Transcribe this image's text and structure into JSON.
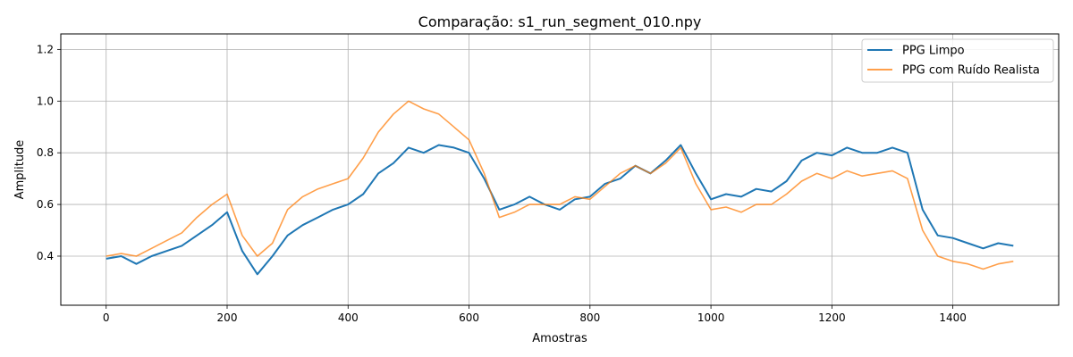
{
  "chart_data": {
    "type": "line",
    "title": "Comparação: s1_run_segment_010.npy",
    "xlabel": "Amostras",
    "ylabel": "Amplitude",
    "xlim": [
      -75,
      1575
    ],
    "ylim": [
      0.21,
      1.26
    ],
    "xticks": [
      0,
      200,
      400,
      600,
      800,
      1000,
      1200,
      1400
    ],
    "yticks": [
      0.4,
      0.6,
      0.8,
      1.0,
      1.2
    ],
    "xtick_labels": [
      "0",
      "200",
      "400",
      "600",
      "800",
      "1000",
      "1200",
      "1400"
    ],
    "ytick_labels": [
      "0.4",
      "0.6",
      "0.8",
      "1.0",
      "1.2"
    ],
    "grid": true,
    "legend_position": "top-right",
    "series": [
      {
        "name": "PPG Limpo",
        "color": "#1f77b4",
        "x": [
          0,
          25,
          50,
          75,
          100,
          125,
          150,
          175,
          200,
          225,
          250,
          275,
          300,
          325,
          350,
          375,
          400,
          425,
          450,
          475,
          500,
          525,
          550,
          575,
          600,
          625,
          650,
          675,
          700,
          725,
          750,
          775,
          800,
          825,
          850,
          875,
          900,
          925,
          950,
          975,
          1000,
          1025,
          1050,
          1075,
          1100,
          1125,
          1150,
          1175,
          1200,
          1225,
          1250,
          1275,
          1300,
          1325,
          1350,
          1375,
          1400,
          1425,
          1450,
          1475,
          1500
        ],
        "y": [
          0.39,
          0.4,
          0.37,
          0.4,
          0.42,
          0.44,
          0.48,
          0.52,
          0.57,
          0.42,
          0.33,
          0.4,
          0.48,
          0.52,
          0.55,
          0.58,
          0.6,
          0.64,
          0.72,
          0.76,
          0.82,
          0.8,
          0.83,
          0.82,
          0.8,
          0.7,
          0.58,
          0.6,
          0.63,
          0.6,
          0.58,
          0.62,
          0.63,
          0.68,
          0.7,
          0.75,
          0.72,
          0.77,
          0.83,
          0.72,
          0.62,
          0.64,
          0.63,
          0.66,
          0.65,
          0.69,
          0.77,
          0.8,
          0.79,
          0.82,
          0.8,
          0.8,
          0.82,
          0.8,
          0.58,
          0.48,
          0.47,
          0.45,
          0.43,
          0.45,
          0.44
        ]
      },
      {
        "name": "PPG com Ruído Realista",
        "color": "#ff7f0e",
        "x": [
          0,
          25,
          50,
          75,
          100,
          125,
          150,
          175,
          200,
          225,
          250,
          275,
          300,
          325,
          350,
          375,
          400,
          425,
          450,
          475,
          500,
          525,
          550,
          575,
          600,
          625,
          650,
          675,
          700,
          725,
          750,
          775,
          800,
          825,
          850,
          875,
          900,
          925,
          950,
          975,
          1000,
          1025,
          1050,
          1075,
          1100,
          1125,
          1150,
          1175,
          1200,
          1225,
          1250,
          1275,
          1300,
          1325,
          1350,
          1375,
          1400,
          1425,
          1450,
          1475,
          1500
        ],
        "y": [
          0.4,
          0.41,
          0.4,
          0.43,
          0.46,
          0.49,
          0.55,
          0.6,
          0.64,
          0.48,
          0.4,
          0.45,
          0.58,
          0.63,
          0.66,
          0.68,
          0.7,
          0.78,
          0.88,
          0.95,
          1.0,
          0.97,
          0.95,
          0.9,
          0.85,
          0.72,
          0.55,
          0.57,
          0.6,
          0.6,
          0.6,
          0.63,
          0.62,
          0.67,
          0.72,
          0.75,
          0.72,
          0.76,
          0.82,
          0.68,
          0.58,
          0.59,
          0.57,
          0.6,
          0.6,
          0.64,
          0.69,
          0.72,
          0.7,
          0.73,
          0.71,
          0.72,
          0.73,
          0.7,
          0.5,
          0.4,
          0.38,
          0.37,
          0.35,
          0.37,
          0.38
        ]
      }
    ]
  }
}
